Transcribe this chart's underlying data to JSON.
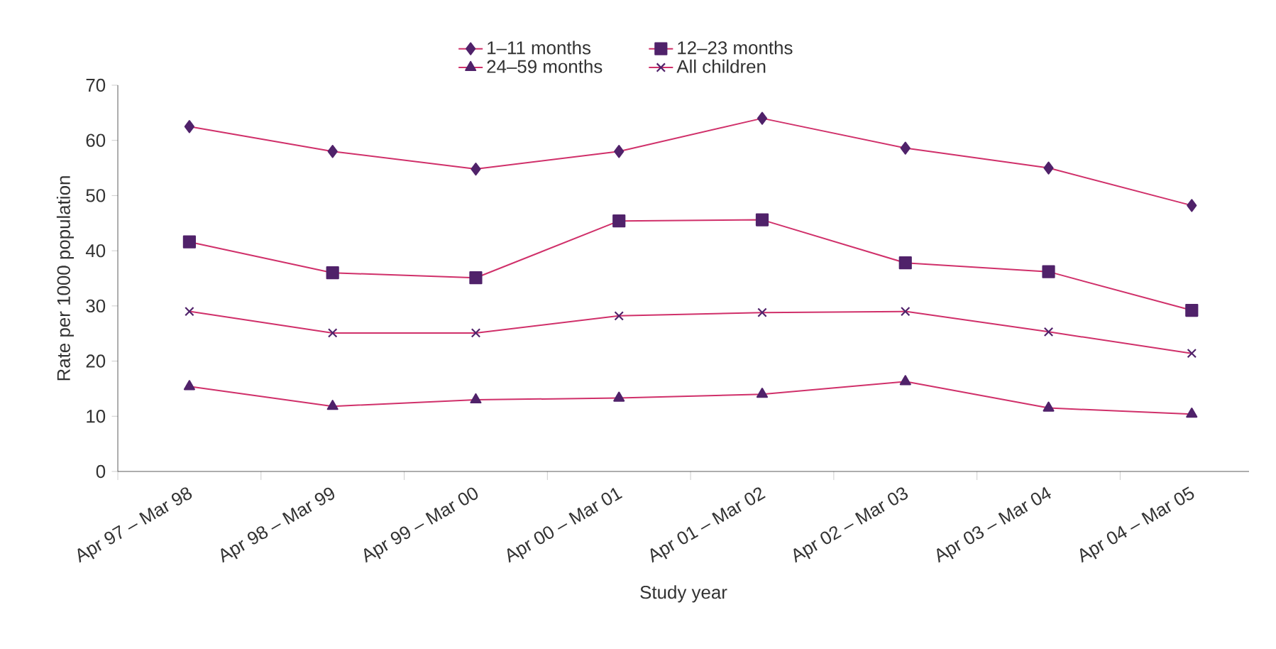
{
  "chart_data": {
    "type": "line",
    "xlabel": "Study year",
    "ylabel": "Rate per 1000 population",
    "categories": [
      "Apr 97 – Mar 98",
      "Apr 98 – Mar 99",
      "Apr 99 – Mar 00",
      "Apr 00 – Mar 01",
      "Apr 01 – Mar 02",
      "Apr 02 – Mar 03",
      "Apr 03 – Mar 04",
      "Apr 04 – Mar 05"
    ],
    "series": [
      {
        "name": "1–11 months",
        "color": "#d0306a",
        "marker": "diamond",
        "values": [
          62.5,
          58,
          54.8,
          58,
          64,
          58.6,
          55,
          48.2
        ]
      },
      {
        "name": "12–23 months",
        "color": "#d0306a",
        "marker": "square",
        "values": [
          41.6,
          36,
          35.1,
          45.4,
          45.6,
          37.8,
          36.2,
          29.2
        ]
      },
      {
        "name": "24–59 months",
        "color": "#d0306a",
        "marker": "triangle",
        "values": [
          15.4,
          11.8,
          13,
          13.3,
          14,
          16.3,
          11.5,
          10.4
        ]
      },
      {
        "name": "All children",
        "color": "#d0306a",
        "marker": "cross",
        "values": [
          29,
          25.1,
          25.1,
          28.2,
          28.8,
          29,
          25.3,
          21.4
        ]
      }
    ],
    "ylim": [
      0,
      70
    ],
    "yticks": [
      0,
      10,
      20,
      30,
      40,
      50,
      60,
      70
    ],
    "grid": false,
    "legend": "top",
    "line_style": "solid"
  }
}
